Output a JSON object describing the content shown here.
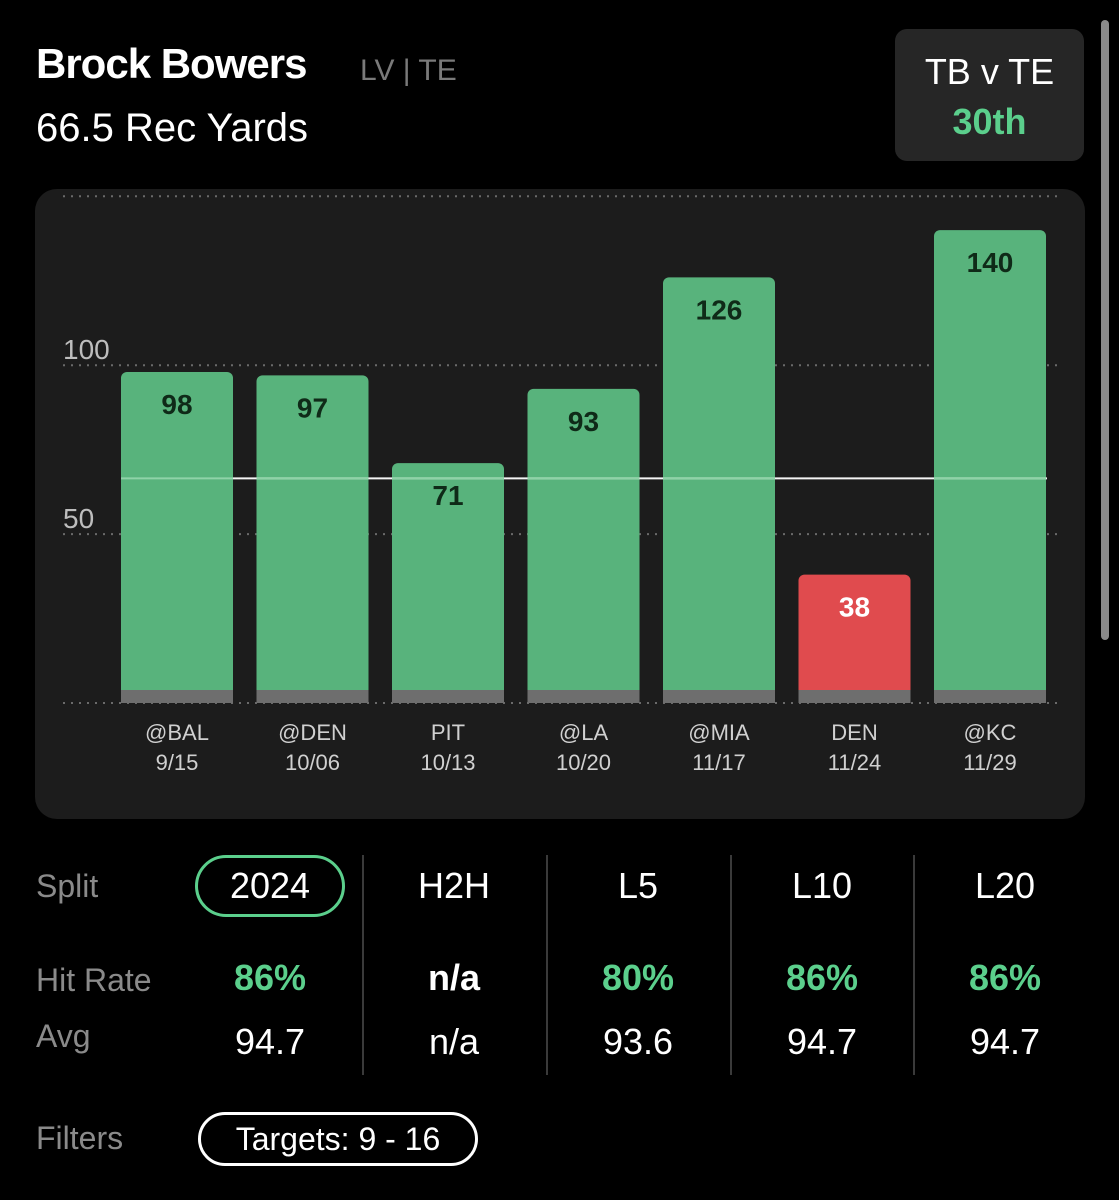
{
  "header": {
    "player_name": "Brock Bowers",
    "player_meta": "LV | TE",
    "prop_line": "66.5 Rec Yards"
  },
  "matchup": {
    "label": "TB v TE",
    "rank": "30th"
  },
  "chart_data": {
    "type": "bar",
    "categories": [
      {
        "opponent": "@BAL",
        "date": "9/15"
      },
      {
        "opponent": "@DEN",
        "date": "10/06"
      },
      {
        "opponent": "PIT",
        "date": "10/13"
      },
      {
        "opponent": "@LA",
        "date": "10/20"
      },
      {
        "opponent": "@MIA",
        "date": "11/17"
      },
      {
        "opponent": "DEN",
        "date": "11/24"
      },
      {
        "opponent": "@KC",
        "date": "11/29"
      }
    ],
    "values": [
      98,
      97,
      71,
      93,
      126,
      38,
      140
    ],
    "line_value": 66.5,
    "y_ticks": [
      50,
      100
    ],
    "ylim": [
      0,
      150
    ],
    "colors": {
      "over": "#58b37c",
      "under": "#e04b4e",
      "panel": "#1c1c1c",
      "base": "#6e6e6e",
      "grid": "#6a6a6a",
      "line": "#ffffff"
    }
  },
  "splits": {
    "split_label": "Split",
    "hit_rate_label": "Hit Rate",
    "avg_label": "Avg",
    "columns": [
      {
        "tab": "2024",
        "hit_rate": "86%",
        "avg": "94.7",
        "active": true
      },
      {
        "tab": "H2H",
        "hit_rate": "n/a",
        "avg": "n/a",
        "active": false
      },
      {
        "tab": "L5",
        "hit_rate": "80%",
        "avg": "93.6",
        "active": false
      },
      {
        "tab": "L10",
        "hit_rate": "86%",
        "avg": "94.7",
        "active": false
      },
      {
        "tab": "L20",
        "hit_rate": "86%",
        "avg": "94.7",
        "active": false
      }
    ]
  },
  "filters": {
    "label": "Filters",
    "pill": "Targets: 9 - 16"
  }
}
